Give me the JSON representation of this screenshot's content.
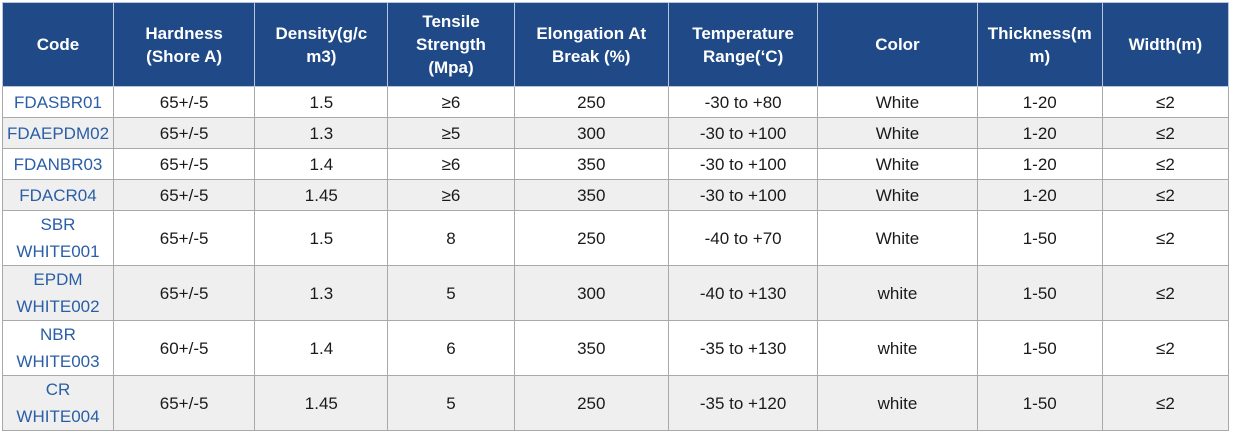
{
  "table": {
    "headers": [
      [
        "Code"
      ],
      [
        "Hardness",
        "(Shore A)"
      ],
      [
        "Density(g/c",
        "m3)"
      ],
      [
        "Tensile",
        "Strength",
        "(Mpa)"
      ],
      [
        "Elongation At",
        "Break (%)"
      ],
      [
        "Temperature",
        "Range(‘C)"
      ],
      [
        "Color"
      ],
      [
        "Thickness(m",
        "m)"
      ],
      [
        "Width(m)"
      ]
    ],
    "rows": [
      {
        "code": [
          "FDASBR01"
        ],
        "hardness": "65+/-5",
        "density": "1.5",
        "tensile": "≥6",
        "elongation": "250",
        "temperature": "-30 to +80",
        "color": "White",
        "thickness": "1-20",
        "width": "≤2"
      },
      {
        "code": [
          "FDAEPDM02"
        ],
        "hardness": "65+/-5",
        "density": "1.3",
        "tensile": "≥5",
        "elongation": "300",
        "temperature": "-30 to +100",
        "color": "White",
        "thickness": "1-20",
        "width": "≤2"
      },
      {
        "code": [
          "FDANBR03"
        ],
        "hardness": "65+/-5",
        "density": "1.4",
        "tensile": "≥6",
        "elongation": "350",
        "temperature": "-30 to +100",
        "color": "White",
        "thickness": "1-20",
        "width": "≤2"
      },
      {
        "code": [
          "FDACR04"
        ],
        "hardness": "65+/-5",
        "density": "1.45",
        "tensile": "≥6",
        "elongation": "350",
        "temperature": "-30 to +100",
        "color": "White",
        "thickness": "1-20",
        "width": "≤2"
      },
      {
        "code": [
          "SBR",
          "WHITE001"
        ],
        "hardness": "65+/-5",
        "density": "1.5",
        "tensile": "8",
        "elongation": "250",
        "temperature": "-40 to +70",
        "color": "White",
        "thickness": "1-50",
        "width": "≤2"
      },
      {
        "code": [
          "EPDM",
          "WHITE002"
        ],
        "hardness": "65+/-5",
        "density": "1.3",
        "tensile": "5",
        "elongation": "300",
        "temperature": "-40 to +130",
        "color": "white",
        "thickness": "1-50",
        "width": "≤2"
      },
      {
        "code": [
          "NBR",
          "WHITE003"
        ],
        "hardness": "60+/-5",
        "density": "1.4",
        "tensile": "6",
        "elongation": "350",
        "temperature": "-35 to +130",
        "color": "white",
        "thickness": "1-50",
        "width": "≤2"
      },
      {
        "code": [
          "CR",
          "WHITE004"
        ],
        "hardness": "65+/-5",
        "density": "1.45",
        "tensile": "5",
        "elongation": "250",
        "temperature": "-35 to +120",
        "color": "white",
        "thickness": "1-50",
        "width": "≤2"
      }
    ]
  },
  "colors": {
    "header_bg": "#1f4a87",
    "header_text": "#ffffff",
    "code_text": "#2a5ea6",
    "alt_row_bg": "#efefef"
  }
}
